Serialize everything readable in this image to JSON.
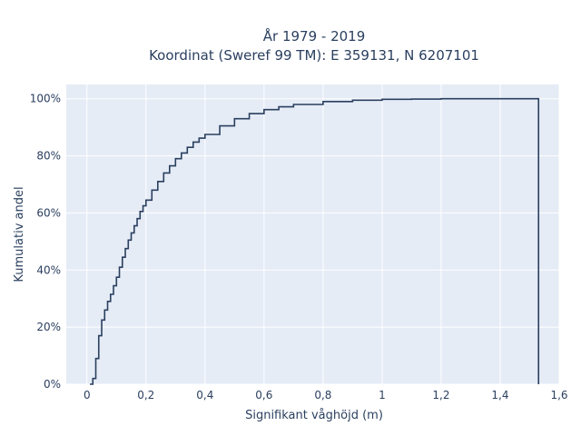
{
  "chart_data": {
    "type": "line",
    "subtype": "cumulative step histogram",
    "title_line1": "År 1979 - 2019",
    "title_line2": "Koordinat (Sweref 99 TM): E 359131, N 6207101",
    "xlabel": "Signifikant våghöjd (m)",
    "ylabel": "Kumulativ andel",
    "xlim": [
      -0.07,
      1.6
    ],
    "ylim": [
      0,
      1.05
    ],
    "x_ticks": [
      0,
      0.2,
      0.4,
      0.6,
      0.8,
      1.0,
      1.2,
      1.4,
      1.6
    ],
    "x_tick_labels": [
      "0",
      "0,2",
      "0,4",
      "0,6",
      "0,8",
      "1",
      "1,2",
      "1,4",
      "1,6"
    ],
    "y_ticks": [
      0,
      0.2,
      0.4,
      0.6,
      0.8,
      1.0
    ],
    "y_tick_labels": [
      "0%",
      "20%",
      "40%",
      "60%",
      "80%",
      "100%"
    ],
    "grid": true,
    "colors": {
      "line": "#2a3f5f",
      "plot_bg": "#e5ecf6",
      "grid": "#ffffff"
    },
    "series": [
      {
        "x": [
          0.01,
          0.02,
          0.03,
          0.04,
          0.05,
          0.06,
          0.07,
          0.08,
          0.09,
          0.1,
          0.11,
          0.12,
          0.13,
          0.14,
          0.15,
          0.16,
          0.17,
          0.18,
          0.19,
          0.2,
          0.22,
          0.24,
          0.26,
          0.28,
          0.3,
          0.32,
          0.34,
          0.36,
          0.38,
          0.4,
          0.45,
          0.5,
          0.55,
          0.6,
          0.65,
          0.7,
          0.8,
          0.9,
          1.0,
          1.1,
          1.2,
          1.53
        ],
        "y": [
          0.0,
          0.02,
          0.09,
          0.17,
          0.225,
          0.26,
          0.29,
          0.315,
          0.345,
          0.375,
          0.41,
          0.445,
          0.475,
          0.505,
          0.53,
          0.555,
          0.58,
          0.605,
          0.625,
          0.645,
          0.68,
          0.71,
          0.74,
          0.765,
          0.79,
          0.81,
          0.83,
          0.848,
          0.862,
          0.875,
          0.905,
          0.93,
          0.948,
          0.962,
          0.972,
          0.98,
          0.99,
          0.995,
          0.998,
          0.999,
          1.0,
          1.0
        ]
      }
    ]
  }
}
